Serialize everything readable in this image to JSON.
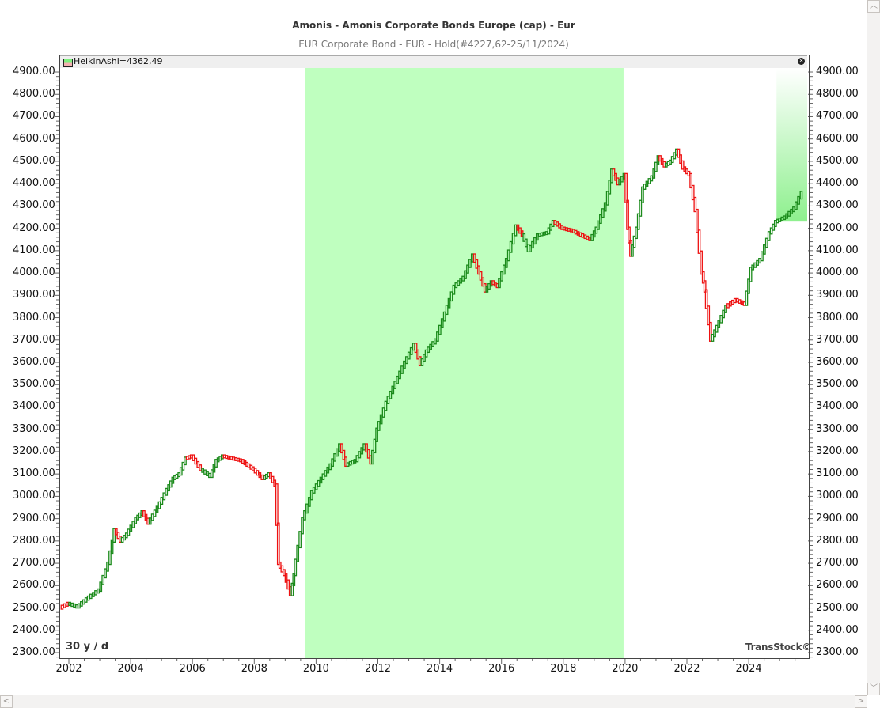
{
  "header": {
    "title": "Amonis - Amonis Corporate Bonds Europe (cap) - Eur",
    "subtitle": "EUR Corporate Bond - EUR - Hold(#4227,62-25/11/2024)"
  },
  "legend": {
    "label": "HeikinAshi=4362,49",
    "close_icon": "close-icon"
  },
  "period_label": "30 y / d",
  "brand": "TransStock©",
  "colors": {
    "up": "#1a8a1a",
    "down": "#ee1111",
    "hold_zone": "#bfffbf",
    "axis": "#444444"
  },
  "chart_data": {
    "type": "line",
    "title": "Amonis - Amonis Corporate Bonds Europe (cap) - Eur",
    "subtitle": "EUR Corporate Bond - EUR - Hold(#4227,62-25/11/2024)",
    "series_name": "HeikinAshi",
    "last_value": 4362.49,
    "xlabel": "",
    "ylabel": "",
    "ylim": [
      2300,
      4900
    ],
    "xlim": [
      2001.7,
      2025.9
    ],
    "grid": false,
    "y_ticks": [
      "4900.00",
      "4800.00",
      "4700.00",
      "4600.00",
      "4500.00",
      "4400.00",
      "4300.00",
      "4200.00",
      "4100.00",
      "4000.00",
      "3900.00",
      "3800.00",
      "3700.00",
      "3600.00",
      "3500.00",
      "3400.00",
      "3300.00",
      "3200.00",
      "3100.00",
      "3000.00",
      "2900.00",
      "2800.00",
      "2700.00",
      "2600.00",
      "2500.00",
      "2400.00",
      "2300.00"
    ],
    "x_ticks": [
      "2002",
      "2004",
      "2006",
      "2008",
      "2010",
      "2012",
      "2014",
      "2016",
      "2018",
      "2020",
      "2022",
      "2024"
    ],
    "hold_zones": [
      {
        "start": 2009.65,
        "end": 2019.95,
        "style": "solid"
      },
      {
        "start": 2024.9,
        "end": 2025.9,
        "style": "gradient",
        "y_bottom": 4230
      }
    ],
    "x": [
      2001.75,
      2002.0,
      2002.3,
      2002.6,
      2003.0,
      2003.3,
      2003.5,
      2003.7,
      2003.9,
      2004.2,
      2004.4,
      2004.6,
      2004.9,
      2005.2,
      2005.4,
      2005.6,
      2005.8,
      2006.0,
      2006.3,
      2006.6,
      2006.8,
      2007.0,
      2007.3,
      2007.6,
      2007.8,
      2008.0,
      2008.3,
      2008.5,
      2008.7,
      2008.8,
      2009.0,
      2009.2,
      2009.3,
      2009.6,
      2009.9,
      2010.2,
      2010.5,
      2010.8,
      2011.0,
      2011.3,
      2011.6,
      2011.8,
      2012.0,
      2012.3,
      2012.6,
      2012.9,
      2013.2,
      2013.4,
      2013.6,
      2013.9,
      2014.2,
      2014.5,
      2014.8,
      2015.1,
      2015.3,
      2015.5,
      2015.7,
      2015.9,
      2016.2,
      2016.5,
      2016.7,
      2016.9,
      2017.2,
      2017.5,
      2017.7,
      2018.0,
      2018.3,
      2018.6,
      2018.9,
      2019.1,
      2019.4,
      2019.6,
      2019.8,
      2020.0,
      2020.1,
      2020.2,
      2020.4,
      2020.6,
      2020.9,
      2021.1,
      2021.3,
      2021.5,
      2021.7,
      2021.9,
      2022.1,
      2022.3,
      2022.5,
      2022.6,
      2022.8,
      2023.0,
      2023.3,
      2023.6,
      2023.9,
      2024.1,
      2024.4,
      2024.7,
      2024.9,
      2025.2,
      2025.5,
      2025.75
    ],
    "values": [
      2500,
      2520,
      2505,
      2540,
      2580,
      2700,
      2850,
      2800,
      2830,
      2900,
      2930,
      2880,
      2950,
      3030,
      3080,
      3100,
      3170,
      3180,
      3120,
      3090,
      3160,
      3180,
      3170,
      3160,
      3140,
      3120,
      3080,
      3100,
      3050,
      2700,
      2650,
      2560,
      2650,
      2900,
      3020,
      3080,
      3140,
      3230,
      3140,
      3160,
      3230,
      3150,
      3300,
      3420,
      3510,
      3600,
      3680,
      3590,
      3650,
      3700,
      3820,
      3940,
      3980,
      4080,
      4000,
      3920,
      3960,
      3940,
      4060,
      4210,
      4170,
      4100,
      4170,
      4180,
      4230,
      4200,
      4190,
      4170,
      4150,
      4200,
      4310,
      4460,
      4400,
      4440,
      4200,
      4080,
      4200,
      4380,
      4430,
      4520,
      4480,
      4500,
      4550,
      4470,
      4440,
      4280,
      4000,
      3920,
      3700,
      3760,
      3850,
      3880,
      3860,
      4020,
      4060,
      4180,
      4230,
      4250,
      4290,
      4360
    ],
    "direction": [
      "up",
      "down",
      "up",
      "up",
      "up",
      "up",
      "up",
      "down",
      "up",
      "up",
      "up",
      "down",
      "up",
      "up",
      "up",
      "up",
      "up",
      "down",
      "down",
      "up",
      "up",
      "up",
      "down",
      "down",
      "down",
      "down",
      "down",
      "up",
      "down",
      "down",
      "down",
      "down",
      "up",
      "up",
      "up",
      "up",
      "up",
      "up",
      "down",
      "up",
      "up",
      "down",
      "up",
      "up",
      "up",
      "up",
      "up",
      "down",
      "up",
      "up",
      "up",
      "up",
      "up",
      "up",
      "down",
      "down",
      "up",
      "down",
      "up",
      "up",
      "down",
      "up",
      "up",
      "up",
      "up",
      "down",
      "down",
      "down",
      "down",
      "up",
      "up",
      "up",
      "down",
      "up",
      "down",
      "down",
      "up",
      "up",
      "up",
      "up",
      "down",
      "up",
      "up",
      "down",
      "down",
      "down",
      "down",
      "down",
      "down",
      "up",
      "up",
      "down",
      "down",
      "up",
      "up",
      "up",
      "up",
      "up",
      "up",
      "up"
    ]
  },
  "scrollbars": {
    "vertical_up": "chevron-up-icon",
    "vertical_down": "chevron-down-icon",
    "horizontal_left": "chevron-left-icon",
    "horizontal_right": "chevron-right-icon"
  }
}
